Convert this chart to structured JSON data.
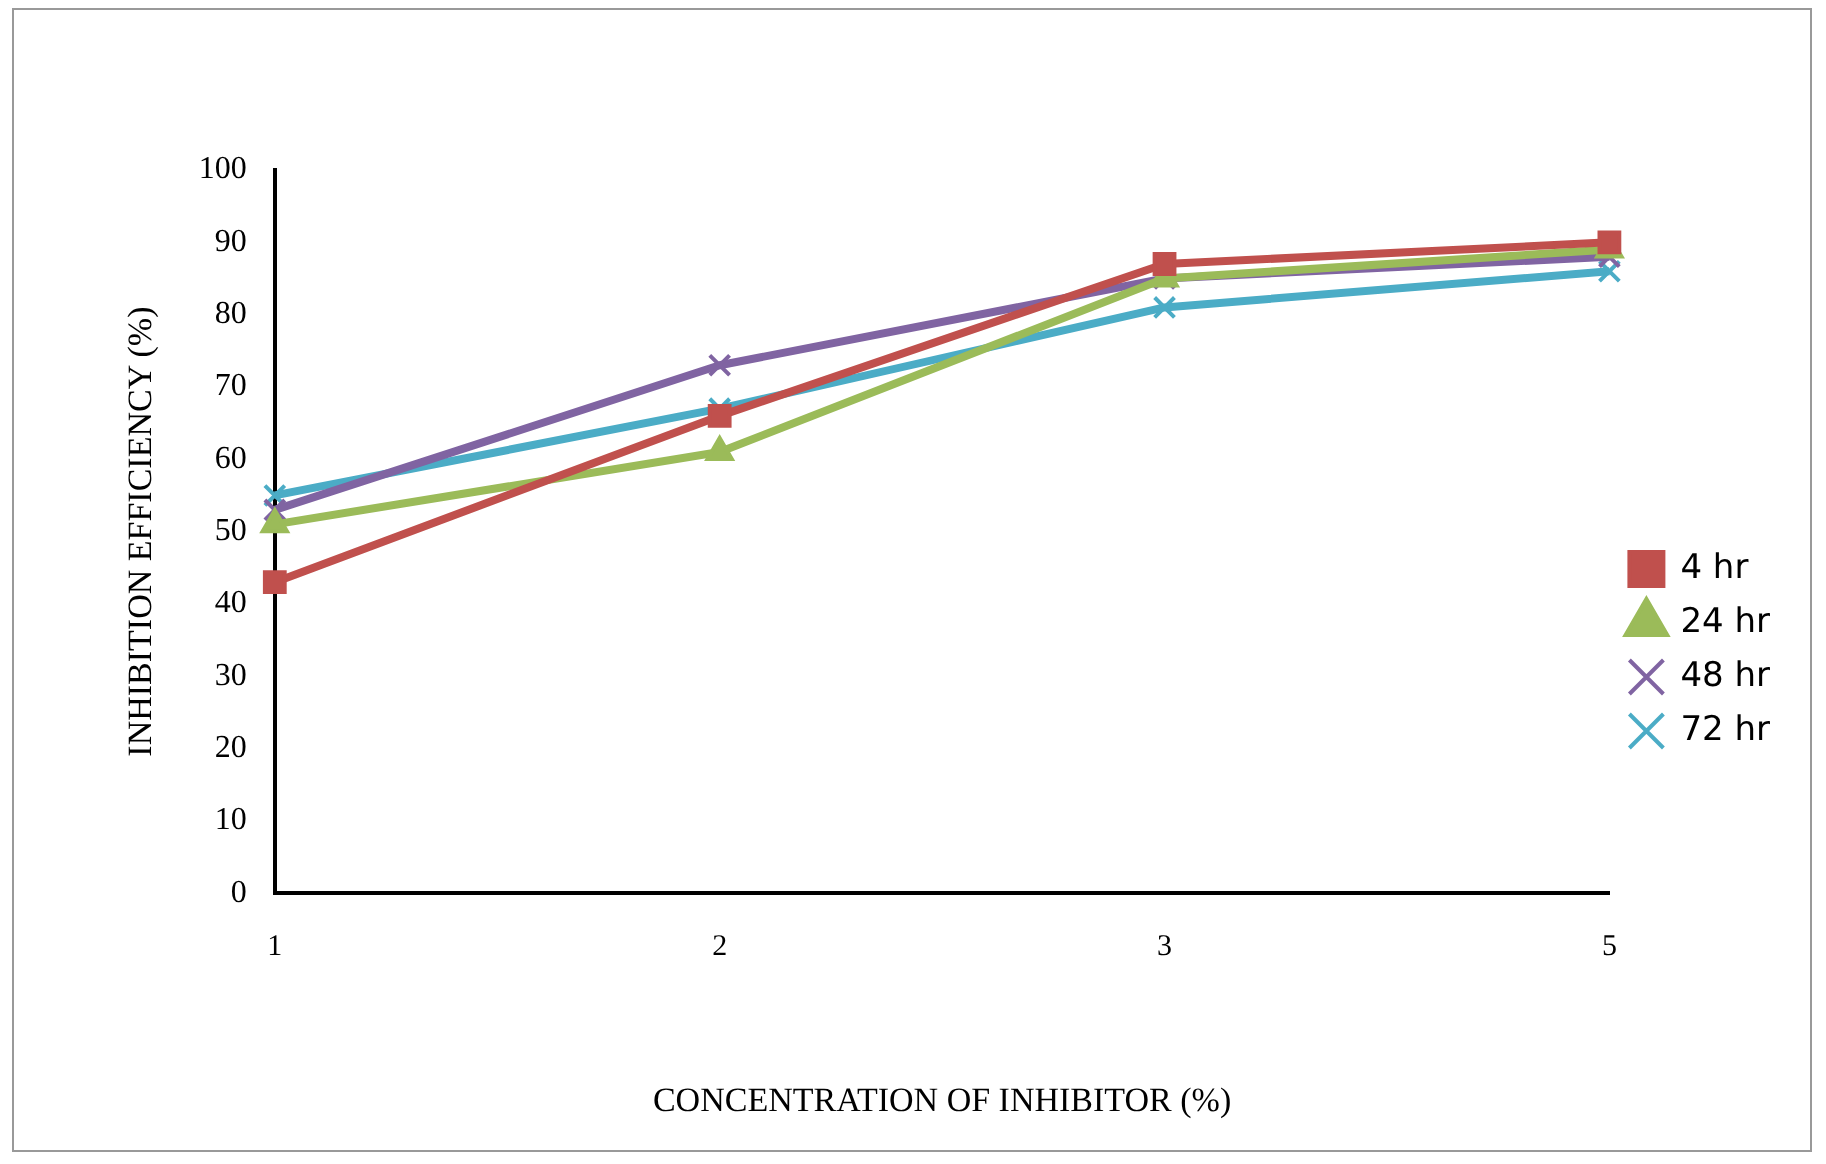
{
  "chart_data": {
    "type": "line",
    "xlabel": "CONCENTRATION OF INHIBITOR (%)",
    "ylabel": "INHIBITION EFFICIENCY (%)",
    "categories": [
      "1",
      "2",
      "3",
      "5"
    ],
    "ylim": [
      0,
      100
    ],
    "yticks": [
      0,
      10,
      20,
      30,
      40,
      50,
      60,
      70,
      80,
      90,
      100
    ],
    "grid": false,
    "legend": "right",
    "line_style": "solid",
    "series": [
      {
        "name": "4 hr",
        "color": "#c0504d",
        "marker": "square",
        "values": [
          43,
          66,
          87,
          90
        ]
      },
      {
        "name": "24 hr",
        "color": "#9bbb59",
        "marker": "triangle",
        "values": [
          51,
          61,
          85,
          89
        ]
      },
      {
        "name": "48 hr",
        "color": "#8064a2",
        "marker": "cross",
        "values": [
          53,
          73,
          85,
          88
        ]
      },
      {
        "name": "72 hr",
        "color": "#4bacc6",
        "marker": "cross",
        "values": [
          55,
          67,
          81,
          86
        ]
      }
    ]
  }
}
